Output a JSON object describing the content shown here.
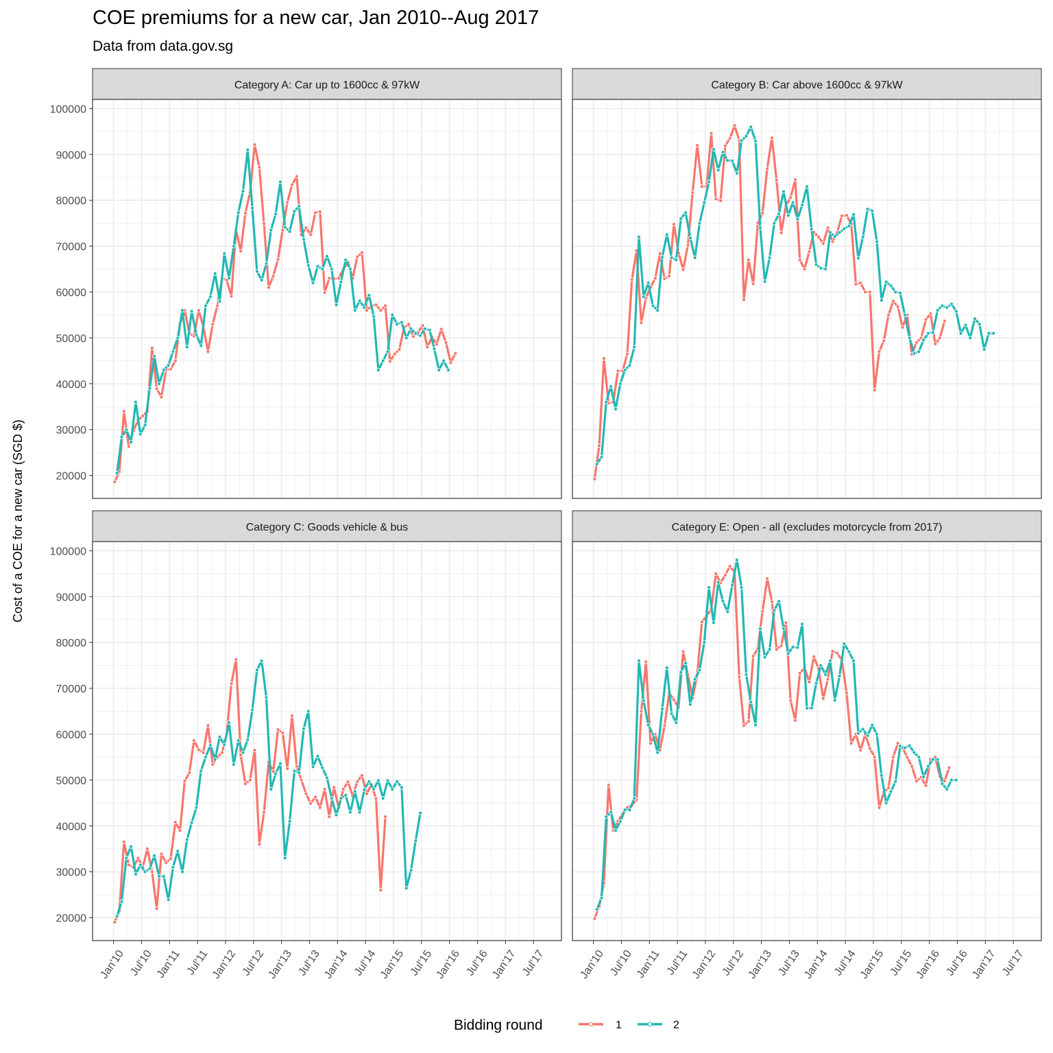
{
  "title": "COE premiums for a new car, Jan 2010--Aug 2017",
  "subtitle": "Data from data.gov.sg",
  "ylabel": "Cost of a COE for a new car (SGD $)",
  "legend": {
    "title": "Bidding round",
    "items": [
      "1",
      "2"
    ]
  },
  "colors": {
    "round1": "#F8766D",
    "round2": "#22B8B4",
    "strip": "#d9d9d9",
    "grid": "#ebebeb"
  },
  "chart_data": {
    "type": "line",
    "x_unit": "month index (0 = Jan 2010)",
    "x_ticks": [
      {
        "label": "Jan'10",
        "m": 0
      },
      {
        "label": "Jul'10",
        "m": 6
      },
      {
        "label": "Jan'11",
        "m": 12
      },
      {
        "label": "Jul'11",
        "m": 18
      },
      {
        "label": "Jan'12",
        "m": 24
      },
      {
        "label": "Jul'12",
        "m": 30
      },
      {
        "label": "Jan'13",
        "m": 36
      },
      {
        "label": "Jul'13",
        "m": 42
      },
      {
        "label": "Jan'14",
        "m": 48
      },
      {
        "label": "Jul'14",
        "m": 54
      },
      {
        "label": "Jan'15",
        "m": 60
      },
      {
        "label": "Jul'15",
        "m": 66
      },
      {
        "label": "Jan'16",
        "m": 72
      },
      {
        "label": "Jul'16",
        "m": 78
      },
      {
        "label": "Jan'17",
        "m": 84
      },
      {
        "label": "Jul'17",
        "m": 90
      }
    ],
    "y_ticks": [
      20000,
      30000,
      40000,
      50000,
      60000,
      70000,
      80000,
      90000,
      100000
    ],
    "ylim": [
      15000,
      102000
    ],
    "xlim": [
      -4.5,
      96
    ],
    "grid": true,
    "legend_position": "bottom",
    "panels": [
      {
        "strip": "Category A: Car up to 1600cc & 97kW",
        "series": [
          {
            "name": "1",
            "values": [
              18600,
              20800,
              34000,
              26300,
              29800,
              32000,
              33000,
              34000,
              47800,
              38900,
              37100,
              43000,
              43200,
              45000,
              53100,
              56000,
              51000,
              50400,
              56000,
              52500,
              47000,
              53000,
              57000,
              63000,
              62600,
              59100,
              73600,
              68900,
              77200,
              81700,
              92100,
              87200,
              74900,
              61000,
              63500,
              67100,
              73500,
              79500,
              83400,
              85200,
              72500,
              74000,
              72500,
              77300,
              77500,
              59900,
              63000,
              62900,
              63000,
              65000,
              66500,
              63000,
              67700,
              68600,
              56000,
              57000,
              57200,
              56000,
              57000,
              44900,
              46500,
              47500,
              52200,
              53000,
              50300,
              51200,
              52700,
              48000,
              50200,
              48600,
              51900,
              49000,
              44600,
              46600
            ],
            "x_start": 0.25
          },
          {
            "name": "2",
            "values": [
              20500,
              28400,
              30000,
              27300,
              36000,
              29000,
              31000,
              39000,
              46000,
              40000,
              43000,
              44000,
              47000,
              50000,
              56000,
              48000,
              55800,
              50700,
              48300,
              57000,
              59000,
              64000,
              58000,
              68400,
              63000,
              70000,
              77300,
              82000,
              91000,
              78300,
              64500,
              62600,
              66200,
              73500,
              77000,
              84000,
              74100,
              73200,
              77600,
              78700,
              71500,
              65800,
              62000,
              65600,
              65000,
              67800,
              65000,
              57200,
              62200,
              67000,
              65000,
              56000,
              58100,
              56600,
              59300,
              54700,
              43000,
              45000,
              47000,
              55000,
              53000,
              53400,
              50000,
              52000,
              51000,
              50500,
              52000,
              51700,
              47600,
              43000,
              45000,
              43000
            ],
            "x_start": 0.75
          }
        ]
      },
      {
        "strip": "Category B: Car above 1600cc & 97kW",
        "series": [
          {
            "name": "1",
            "values": [
              19200,
              26500,
              45500,
              35800,
              36000,
              42800,
              42800,
              46500,
              62700,
              69000,
              53300,
              58700,
              61000,
              63000,
              68400,
              62900,
              63500,
              74800,
              68500,
              64900,
              70200,
              81700,
              92000,
              83000,
              83000,
              94600,
              80300,
              79900,
              91900,
              93500,
              96300,
              93100,
              58300,
              67000,
              61800,
              75100,
              77200,
              86900,
              93600,
              84400,
              72900,
              78900,
              80600,
              84500,
              67000,
              65000,
              68800,
              73000,
              72000,
              70600,
              74000,
              71000,
              73000,
              76600,
              76700,
              74900,
              61700,
              62000,
              60000,
              60000,
              38600,
              47000,
              49400,
              55000,
              58000,
              56800,
              52300,
              55000,
              46400,
              49000,
              50000,
              54000,
              55300,
              48700,
              50000,
              53700
            ],
            "x_start": 0.25
          },
          {
            "name": "2",
            "values": [
              22500,
              24000,
              36000,
              39400,
              34500,
              40000,
              43000,
              44000,
              48000,
              72000,
              59000,
              62000,
              57000,
              56000,
              67600,
              72500,
              67500,
              67000,
              76000,
              77300,
              71800,
              67500,
              75000,
              79500,
              84000,
              91100,
              86600,
              90500,
              88700,
              88600,
              85900,
              93000,
              94000,
              96000,
              92900,
              74000,
              62300,
              67500,
              75000,
              77000,
              81900,
              76700,
              79500,
              75900,
              79000,
              83000,
              73700,
              66000,
              65200,
              65000,
              73000,
              72100,
              73000,
              73800,
              74400,
              76900,
              67400,
              72000,
              78100,
              77700,
              71000,
              58200,
              62200,
              61400,
              60000,
              59800,
              55000,
              50000,
              46600,
              47000,
              49500,
              51000,
              51200,
              56000,
              57000,
              56600,
              57400,
              55800,
              51000,
              52800,
              50000,
              54200,
              53000,
              47500,
              51000,
              51000
            ],
            "x_start": 0.75
          }
        ]
      },
      {
        "strip": "Category C: Goods vehicle & bus",
        "series": [
          {
            "name": "1",
            "values": [
              19000,
              21500,
              36500,
              31500,
              31000,
              33000,
              31000,
              35000,
              30000,
              22000,
              33900,
              32000,
              32900,
              40800,
              39000,
              49800,
              51600,
              58600,
              56600,
              56000,
              61900,
              53400,
              55000,
              56000,
              60100,
              71000,
              76300,
              55500,
              49200,
              50000,
              56500,
              36000,
              43000,
              53900,
              51900,
              61000,
              60300,
              52500,
              64000,
              53000,
              50000,
              47000,
              44900,
              46300,
              44000,
              48000,
              42000,
              48400,
              44000,
              48000,
              49600,
              46500,
              49700,
              51000,
              47000,
              49000,
              46000,
              26000,
              42000
            ],
            "x_start": 0.25
          },
          {
            "name": "2",
            "values": [
              20300,
              23500,
              33000,
              35500,
              29500,
              31500,
              30000,
              30700,
              33500,
              29000,
              29000,
              23900,
              31000,
              34500,
              30000,
              37000,
              40700,
              44000,
              52000,
              55000,
              57600,
              54500,
              59400,
              57700,
              62500,
              53400,
              58600,
              56000,
              58800,
              65300,
              74000,
              76000,
              68000,
              48000,
              51400,
              53600,
              33000,
              41000,
              52000,
              51600,
              61200,
              65000,
              52900,
              55200,
              52700,
              50500,
              46000,
              42400,
              46000,
              46700,
              43000,
              47500,
              43000,
              47900,
              49700,
              48000,
              49900,
              46000,
              49900,
              48000,
              49700,
              48400,
              26400,
              30300,
              36800,
              42800
            ],
            "x_start": 0.75
          }
        ]
      },
      {
        "strip": "Category E: Open - all (excludes motorcycle from 2017)",
        "series": [
          {
            "name": "1",
            "values": [
              19800,
              22500,
              27600,
              48900,
              39000,
              41100,
              42600,
              44000,
              44500,
              45700,
              65000,
              75800,
              58000,
              60000,
              56500,
              61900,
              69000,
              67500,
              65900,
              78000,
              73000,
              67900,
              73000,
              84500,
              85800,
              87200,
              95000,
              93000,
              94700,
              96600,
              95300,
              72500,
              61900,
              62800,
              77000,
              78700,
              86800,
              93900,
              88900,
              78500,
              79300,
              84300,
              67400,
              63000,
              73300,
              74500,
              71400,
              76900,
              74300,
              67800,
              72000,
              78100,
              77700,
              76100,
              69000,
              58000,
              60000,
              56500,
              60000,
              56900,
              55000,
              44000,
              47400,
              48300,
              55000,
              58000,
              57000,
              55000,
              53000,
              49800,
              50600,
              48800,
              54500,
              55000,
              50800,
              49800,
              52700
            ],
            "x_start": 0.25
          },
          {
            "name": "2",
            "values": [
              21800,
              24300,
              42000,
              43000,
              39000,
              41000,
              43500,
              43500,
              46000,
              76000,
              67300,
              62000,
              60000,
              56000,
              65500,
              74500,
              64500,
              62500,
              73500,
              75500,
              66500,
              72000,
              74000,
              80000,
              92000,
              84300,
              93100,
              89000,
              86700,
              92500,
              98000,
              92000,
              73000,
              67000,
              62000,
              83000,
              76800,
              78500,
              87000,
              89000,
              83000,
              77600,
              79000,
              78900,
              84000,
              65700,
              65700,
              71100,
              75000,
              73000,
              76000,
              67400,
              72700,
              79700,
              78000,
              76000,
              60200,
              61100,
              59700,
              62000,
              60000,
              51000,
              45000,
              47500,
              49700,
              57400,
              57000,
              57500,
              56000,
              55000,
              50700,
              53000,
              54500,
              54500,
              49200,
              48000,
              50000,
              50000
            ],
            "x_start": 0.75
          }
        ]
      }
    ]
  }
}
